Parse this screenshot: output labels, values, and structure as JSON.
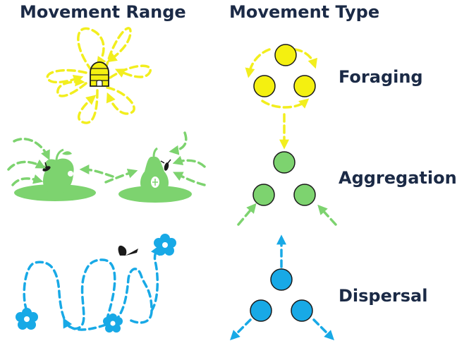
{
  "headings": {
    "movement_range": "Movement Range",
    "movement_type": "Movement Type"
  },
  "types": {
    "foraging": "Foraging",
    "aggregation": "Aggregation",
    "dispersal": "Dispersal"
  },
  "colors": {
    "foraging": "#f4f010",
    "aggregation": "#7dd36f",
    "dispersal": "#18a9e6",
    "text": "#1b2a46"
  },
  "icons": {
    "foraging_range": [
      "beehive-icon",
      "dashed-petal-loop-arrows"
    ],
    "aggregation_range": [
      "apple-icon",
      "pear-icon",
      "fly-icon"
    ],
    "dispersal_range": [
      "flower-icon",
      "butterfly-icon",
      "wandering-dashed-path"
    ]
  }
}
